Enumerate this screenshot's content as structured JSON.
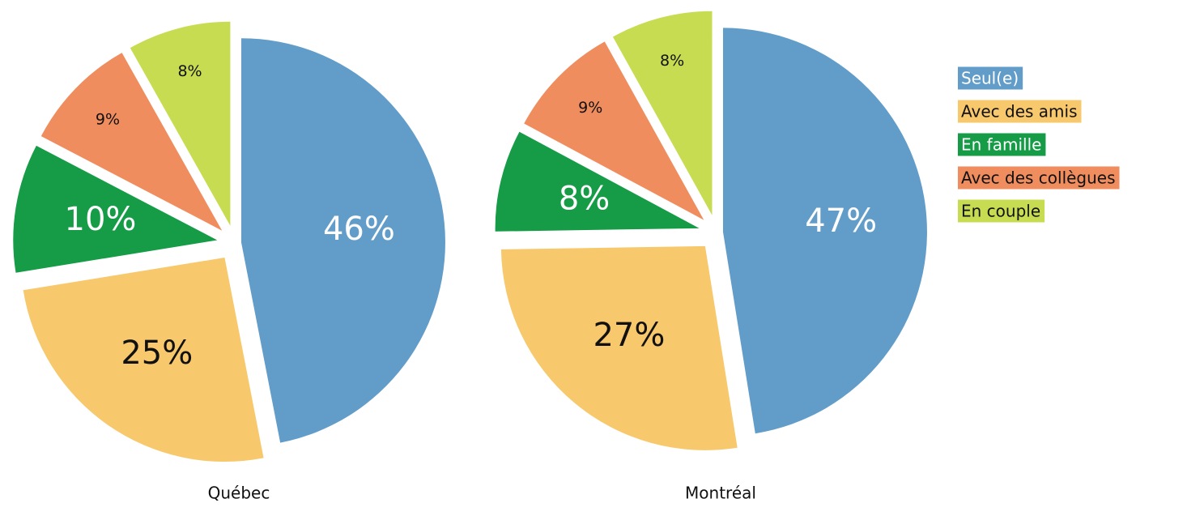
{
  "chart_data": [
    {
      "type": "pie",
      "title": "Québec",
      "categories": [
        "Seul(e)",
        "Avec des amis",
        "En famille",
        "Avec des collègues",
        "En couple"
      ],
      "values": [
        46,
        25,
        10,
        9,
        8
      ],
      "value_labels": [
        "46%",
        "25%",
        "10%",
        "9%",
        "8%"
      ],
      "colors": [
        "#629dc9",
        "#f7c86c",
        "#169c47",
        "#f08d5f",
        "#c8dc52"
      ]
    },
    {
      "type": "pie",
      "title": "Montréal",
      "categories": [
        "Seul(e)",
        "Avec des amis",
        "En famille",
        "Avec des collègues",
        "En couple"
      ],
      "values": [
        47,
        27,
        8,
        9,
        8
      ],
      "value_labels": [
        "47%",
        "27%",
        "8%",
        "9%",
        "8%"
      ],
      "colors": [
        "#629dc9",
        "#f7c86c",
        "#169c47",
        "#f08d5f",
        "#c8dc52"
      ]
    }
  ]
}
